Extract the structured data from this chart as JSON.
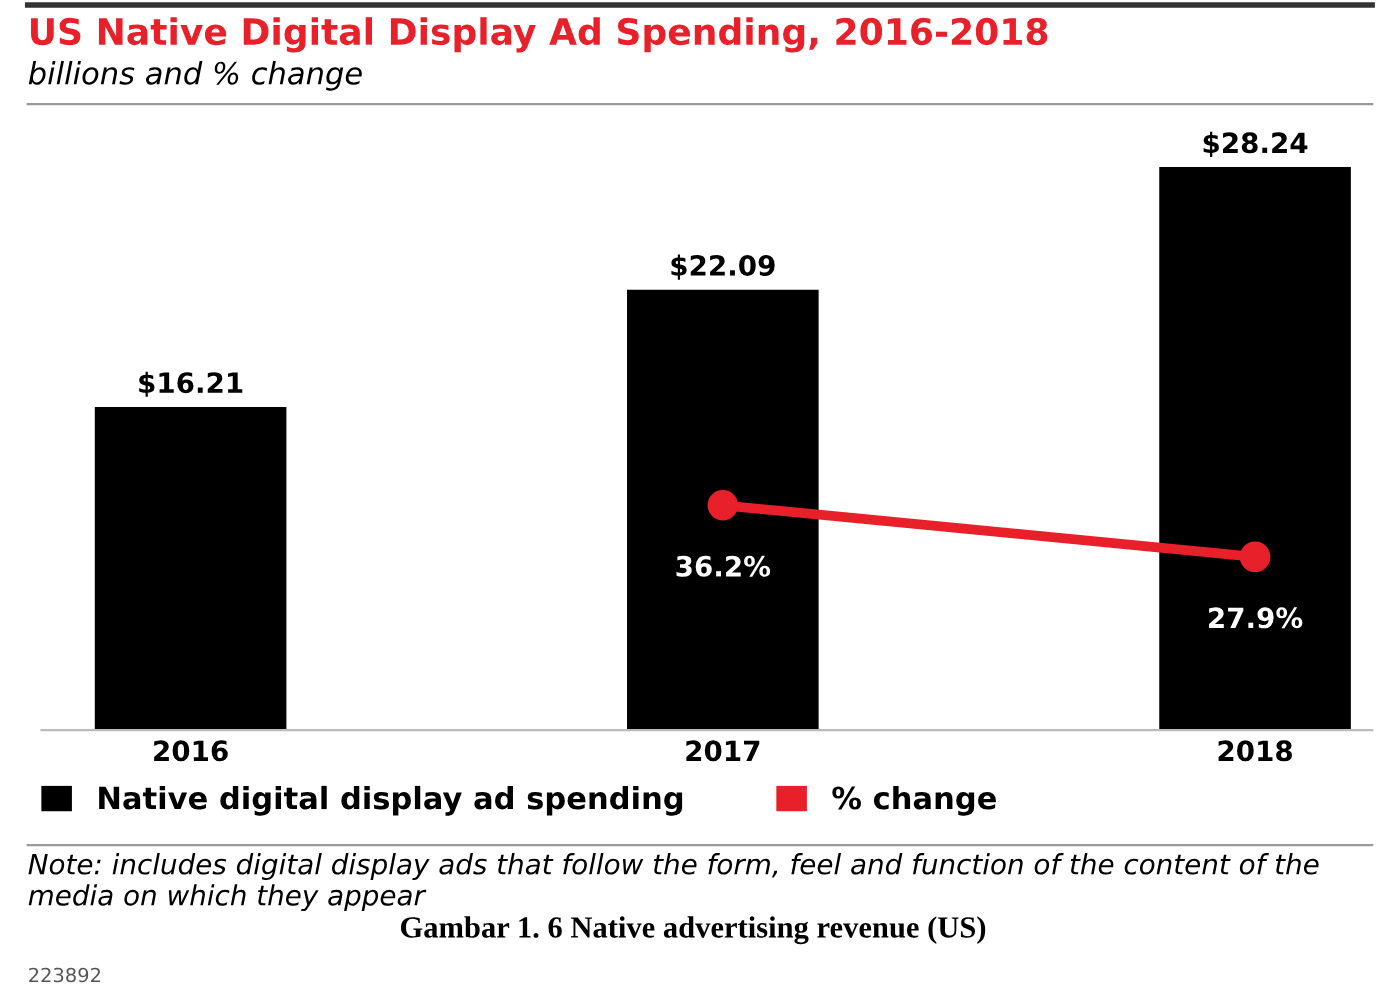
{
  "chart_data": {
    "type": "bar",
    "title": "US Native Digital Display Ad Spending, 2016-2018",
    "subtitle": "billions and % change",
    "categories": [
      "2016",
      "2017",
      "2018"
    ],
    "series": [
      {
        "name": "Native digital display ad spending",
        "color": "#000000",
        "values": [
          16.21,
          22.09,
          28.24
        ],
        "value_labels": [
          "$16.21",
          "$22.09",
          "$28.24"
        ]
      },
      {
        "name": "% change",
        "type": "line",
        "axis": "y2",
        "color": "#e8202a",
        "marker": "circle",
        "values": [
          null,
          36.2,
          27.9
        ],
        "value_labels": [
          null,
          "36.2%",
          "27.9%"
        ]
      }
    ],
    "tick_labels": "x",
    "grid": false,
    "legend": "bottom",
    "annotations": [
      "Note: includes digital display ads that follow the form, feel and function of the content of the media on which they appear",
      "Gambar 1. 6 Native advertising revenue (US)",
      "223892"
    ]
  }
}
